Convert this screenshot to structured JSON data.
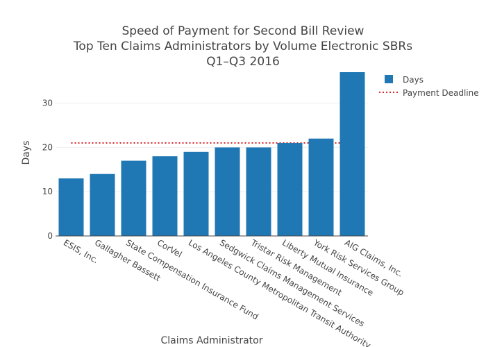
{
  "chart_data": {
    "type": "bar",
    "title": "Speed of Payment for Second Bill Review",
    "subtitle_lines": [
      "Top Ten Claims Administrators by Volume Electronic SBRs",
      "Q1–Q3 2016"
    ],
    "xlabel": "Claims Administrator",
    "ylabel": "Days",
    "categories": [
      "ESIS, Inc.",
      "Gallagher Bassett",
      "State Compensation Insurance Fund",
      "CorVel",
      "Los Angeles County Metropolitan Transit Authority",
      "Sedgwick Claims Management Services",
      "Tristar Risk Management",
      "Liberty Mutual Insurance",
      "York Risk Services Group",
      "AIG Claims, Inc."
    ],
    "series": [
      {
        "name": "Days",
        "color": "#1f77b4",
        "values": [
          13,
          14,
          17,
          18,
          19,
          20,
          20,
          21,
          22,
          37
        ]
      }
    ],
    "reference_line": {
      "name": "Payment Deadline",
      "value": 21,
      "color": "#d62728",
      "style": "dotted"
    },
    "ylim": [
      0,
      37
    ],
    "yticks": [
      0,
      10,
      20,
      30
    ],
    "grid": true,
    "legend_position": "top-right"
  }
}
